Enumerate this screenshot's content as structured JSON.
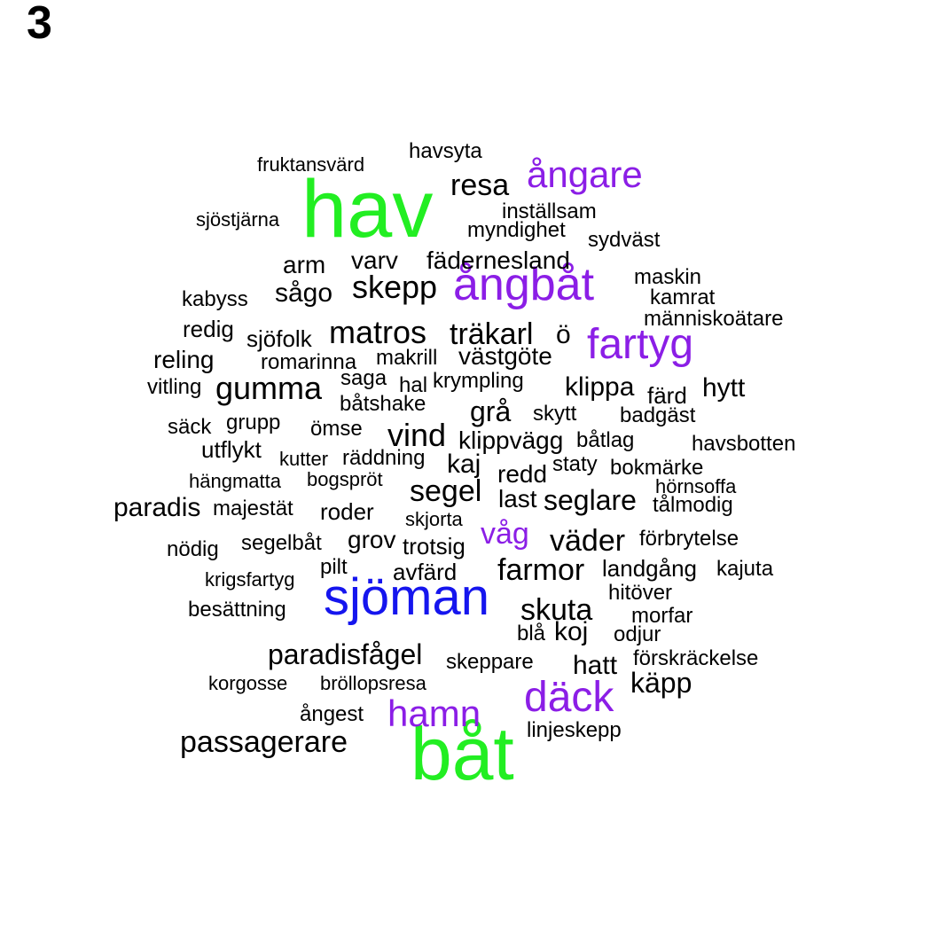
{
  "panel_label": "3",
  "colors": {
    "green": "#22ee22",
    "purple": "#8b1ee6",
    "blue": "#1515ee",
    "black": "#000000"
  },
  "words": [
    {
      "text": "hav",
      "color": "green"
    },
    {
      "text": "båt",
      "color": "green"
    },
    {
      "text": "sjöman",
      "color": "blue"
    },
    {
      "text": "ångbåt",
      "color": "purple"
    },
    {
      "text": "fartyg",
      "color": "purple"
    },
    {
      "text": "ångare",
      "color": "purple"
    },
    {
      "text": "däck",
      "color": "purple"
    },
    {
      "text": "hamn",
      "color": "purple"
    },
    {
      "text": "våg",
      "color": "purple"
    },
    {
      "text": "havsyta",
      "color": "black"
    },
    {
      "text": "fruktansvärd",
      "color": "black"
    },
    {
      "text": "resa",
      "color": "black"
    },
    {
      "text": "inställsam",
      "color": "black"
    },
    {
      "text": "sjöstjärna",
      "color": "black"
    },
    {
      "text": "myndighet",
      "color": "black"
    },
    {
      "text": "sydväst",
      "color": "black"
    },
    {
      "text": "arm",
      "color": "black"
    },
    {
      "text": "varv",
      "color": "black"
    },
    {
      "text": "fädernesland",
      "color": "black"
    },
    {
      "text": "maskin",
      "color": "black"
    },
    {
      "text": "kabyss",
      "color": "black"
    },
    {
      "text": "sågo",
      "color": "black"
    },
    {
      "text": "skepp",
      "color": "black"
    },
    {
      "text": "kamrat",
      "color": "black"
    },
    {
      "text": "människoätare",
      "color": "black"
    },
    {
      "text": "redig",
      "color": "black"
    },
    {
      "text": "sjöfolk",
      "color": "black"
    },
    {
      "text": "matros",
      "color": "black"
    },
    {
      "text": "träkarl",
      "color": "black"
    },
    {
      "text": "ö",
      "color": "black"
    },
    {
      "text": "reling",
      "color": "black"
    },
    {
      "text": "romarinna",
      "color": "black"
    },
    {
      "text": "makrill",
      "color": "black"
    },
    {
      "text": "västgöte",
      "color": "black"
    },
    {
      "text": "vitling",
      "color": "black"
    },
    {
      "text": "gumma",
      "color": "black"
    },
    {
      "text": "saga",
      "color": "black"
    },
    {
      "text": "hal",
      "color": "black"
    },
    {
      "text": "krympling",
      "color": "black"
    },
    {
      "text": "klippa",
      "color": "black"
    },
    {
      "text": "färd",
      "color": "black"
    },
    {
      "text": "hytt",
      "color": "black"
    },
    {
      "text": "båtshake",
      "color": "black"
    },
    {
      "text": "grå",
      "color": "black"
    },
    {
      "text": "skytt",
      "color": "black"
    },
    {
      "text": "badgäst",
      "color": "black"
    },
    {
      "text": "säck",
      "color": "black"
    },
    {
      "text": "grupp",
      "color": "black"
    },
    {
      "text": "ömse",
      "color": "black"
    },
    {
      "text": "vind",
      "color": "black"
    },
    {
      "text": "klippvägg",
      "color": "black"
    },
    {
      "text": "båtlag",
      "color": "black"
    },
    {
      "text": "havsbotten",
      "color": "black"
    },
    {
      "text": "utflykt",
      "color": "black"
    },
    {
      "text": "kutter",
      "color": "black"
    },
    {
      "text": "räddning",
      "color": "black"
    },
    {
      "text": "kaj",
      "color": "black"
    },
    {
      "text": "staty",
      "color": "black"
    },
    {
      "text": "bokmärke",
      "color": "black"
    },
    {
      "text": "redd",
      "color": "black"
    },
    {
      "text": "hängmatta",
      "color": "black"
    },
    {
      "text": "bogspröt",
      "color": "black"
    },
    {
      "text": "hörnsoffa",
      "color": "black"
    },
    {
      "text": "segel",
      "color": "black"
    },
    {
      "text": "last",
      "color": "black"
    },
    {
      "text": "seglare",
      "color": "black"
    },
    {
      "text": "paradis",
      "color": "black"
    },
    {
      "text": "majestät",
      "color": "black"
    },
    {
      "text": "roder",
      "color": "black"
    },
    {
      "text": "tålmodig",
      "color": "black"
    },
    {
      "text": "skjorta",
      "color": "black"
    },
    {
      "text": "segelbåt",
      "color": "black"
    },
    {
      "text": "grov",
      "color": "black"
    },
    {
      "text": "trotsig",
      "color": "black"
    },
    {
      "text": "väder",
      "color": "black"
    },
    {
      "text": "förbrytelse",
      "color": "black"
    },
    {
      "text": "nödig",
      "color": "black"
    },
    {
      "text": "pilt",
      "color": "black"
    },
    {
      "text": "avfärd",
      "color": "black"
    },
    {
      "text": "farmor",
      "color": "black"
    },
    {
      "text": "landgång",
      "color": "black"
    },
    {
      "text": "kajuta",
      "color": "black"
    },
    {
      "text": "krigsfartyg",
      "color": "black"
    },
    {
      "text": "hitöver",
      "color": "black"
    },
    {
      "text": "besättning",
      "color": "black"
    },
    {
      "text": "skuta",
      "color": "black"
    },
    {
      "text": "morfar",
      "color": "black"
    },
    {
      "text": "blå",
      "color": "black"
    },
    {
      "text": "koj",
      "color": "black"
    },
    {
      "text": "odjur",
      "color": "black"
    },
    {
      "text": "paradisfågel",
      "color": "black"
    },
    {
      "text": "skeppare",
      "color": "black"
    },
    {
      "text": "hatt",
      "color": "black"
    },
    {
      "text": "förskräckelse",
      "color": "black"
    },
    {
      "text": "korgosse",
      "color": "black"
    },
    {
      "text": "bröllopsresa",
      "color": "black"
    },
    {
      "text": "käpp",
      "color": "black"
    },
    {
      "text": "ångest",
      "color": "black"
    },
    {
      "text": "linjeskepp",
      "color": "black"
    },
    {
      "text": "passagerare",
      "color": "black"
    }
  ]
}
